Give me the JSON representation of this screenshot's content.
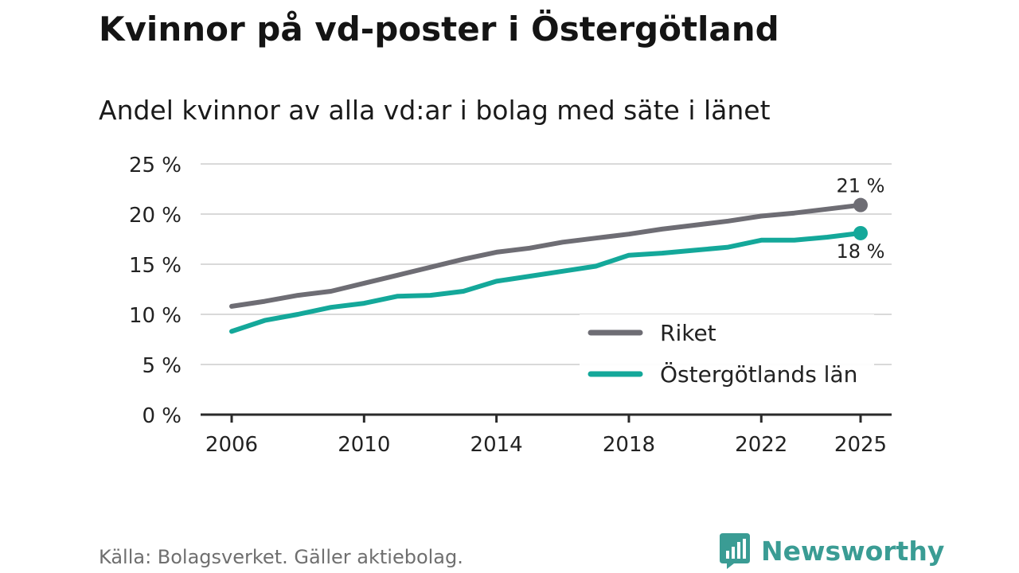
{
  "title": "Kvinnor på vd-poster i Östergötland",
  "subtitle": "Andel kvinnor av alla vd:ar i bolag med säte i länet",
  "source": "Källa: Bolagsverket. Gäller aktiebolag.",
  "brand": {
    "name": "Newsworthy",
    "icon": "newsworthy-logo-icon",
    "color": "#3a9c94"
  },
  "chart_data": {
    "type": "line",
    "title": "Kvinnor på vd-poster i Östergötland",
    "subtitle": "Andel kvinnor av alla vd:ar i bolag med säte i länet",
    "xlabel": "",
    "ylabel": "",
    "x": [
      2006,
      2007,
      2008,
      2009,
      2010,
      2011,
      2012,
      2013,
      2014,
      2015,
      2016,
      2017,
      2018,
      2019,
      2020,
      2021,
      2022,
      2023,
      2024,
      2025
    ],
    "xlim": [
      2006,
      2025
    ],
    "ylim": [
      0,
      25
    ],
    "grid": true,
    "x_ticks": [
      2006,
      2010,
      2014,
      2018,
      2022,
      2025
    ],
    "x_tick_labels": [
      "2006",
      "2010",
      "2014",
      "2018",
      "2022",
      "2025"
    ],
    "y_ticks": [
      0,
      5,
      10,
      15,
      20,
      25
    ],
    "y_tick_labels": [
      "0 %",
      "5 %",
      "10 %",
      "15 %",
      "20 %",
      "25 %"
    ],
    "legend_position": "bottom-right",
    "series": [
      {
        "name": "Riket",
        "color": "#6e6d74",
        "values": [
          10.8,
          11.3,
          11.9,
          12.3,
          13.1,
          13.9,
          14.7,
          15.5,
          16.2,
          16.6,
          17.2,
          17.6,
          18.0,
          18.5,
          18.9,
          19.3,
          19.8,
          20.1,
          20.5,
          20.9
        ],
        "end_label": "21 %",
        "end_label_position": "above"
      },
      {
        "name": "Östergötlands län",
        "color": "#14a89a",
        "values": [
          8.3,
          9.4,
          10.0,
          10.7,
          11.1,
          11.8,
          11.9,
          12.3,
          13.3,
          13.8,
          14.3,
          14.8,
          15.9,
          16.1,
          16.4,
          16.7,
          17.4,
          17.4,
          17.7,
          18.1
        ],
        "end_label": "18 %",
        "end_label_position": "below"
      }
    ]
  }
}
